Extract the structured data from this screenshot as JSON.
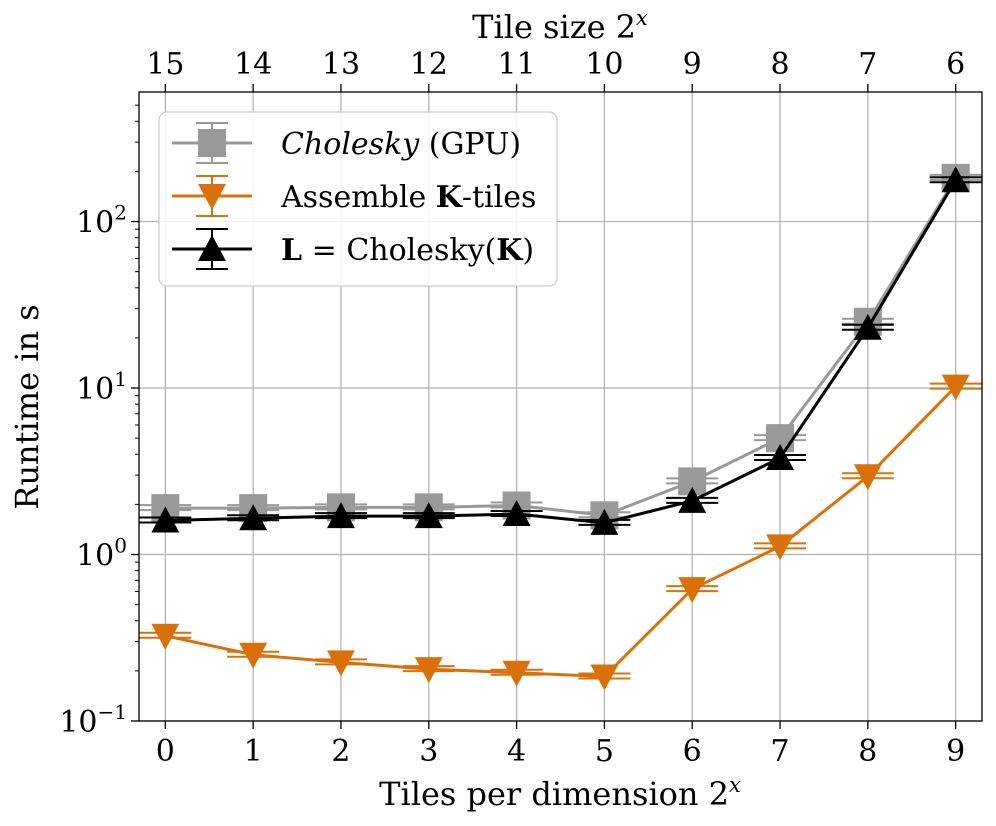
{
  "chart_data": {
    "type": "line",
    "y_scale": "log",
    "xlabel_bottom": "Tiles per dimension 2",
    "xlabel_bottom_sup": "x",
    "xlabel_top": "Tile size 2",
    "xlabel_top_sup": "x",
    "ylabel": "Runtime in s",
    "x": [
      0,
      1,
      2,
      3,
      4,
      5,
      6,
      7,
      8,
      9
    ],
    "x_tick_labels": [
      "0",
      "1",
      "2",
      "3",
      "4",
      "5",
      "6",
      "7",
      "8",
      "9"
    ],
    "top_tick_labels": [
      "15",
      "14",
      "13",
      "12",
      "11",
      "10",
      "9",
      "8",
      "7",
      "6"
    ],
    "xlim": [
      -0.3,
      9.3
    ],
    "ylim": [
      0.1,
      600
    ],
    "y_ticks": [
      {
        "value": 0.1,
        "base": "10",
        "exp": "−1"
      },
      {
        "value": 1,
        "base": "10",
        "exp": "0"
      },
      {
        "value": 10,
        "base": "10",
        "exp": "1"
      },
      {
        "value": 100,
        "base": "10",
        "exp": "2"
      }
    ],
    "grid": true,
    "legend_position": "upper-left",
    "series": [
      {
        "name": "Cholesky (GPU)",
        "legend_italic": "Cholesky",
        "legend_rest": " (GPU)",
        "color": "#999999",
        "marker": "square",
        "values": [
          1.9,
          1.9,
          1.92,
          1.92,
          1.97,
          1.72,
          2.75,
          5.0,
          25.0,
          183.0
        ]
      },
      {
        "name": "Assemble K-tiles",
        "legend_pre": "Assemble ",
        "legend_bold": "K",
        "legend_post": "-tiles",
        "color": "#d9700a",
        "marker": "triangle-down",
        "values": [
          0.325,
          0.25,
          0.225,
          0.205,
          0.195,
          0.185,
          0.62,
          1.12,
          2.95,
          10.2
        ]
      },
      {
        "name": "L = Cholesky(K)",
        "legend_bold1": "L",
        "legend_eq": " = ",
        "legend_mid": "Cholesky(",
        "legend_bold2": "K",
        "legend_close": ")",
        "color": "#000000",
        "marker": "triangle-up",
        "values": [
          1.6,
          1.65,
          1.7,
          1.7,
          1.75,
          1.55,
          2.1,
          3.8,
          23.0,
          177.0
        ]
      }
    ]
  }
}
